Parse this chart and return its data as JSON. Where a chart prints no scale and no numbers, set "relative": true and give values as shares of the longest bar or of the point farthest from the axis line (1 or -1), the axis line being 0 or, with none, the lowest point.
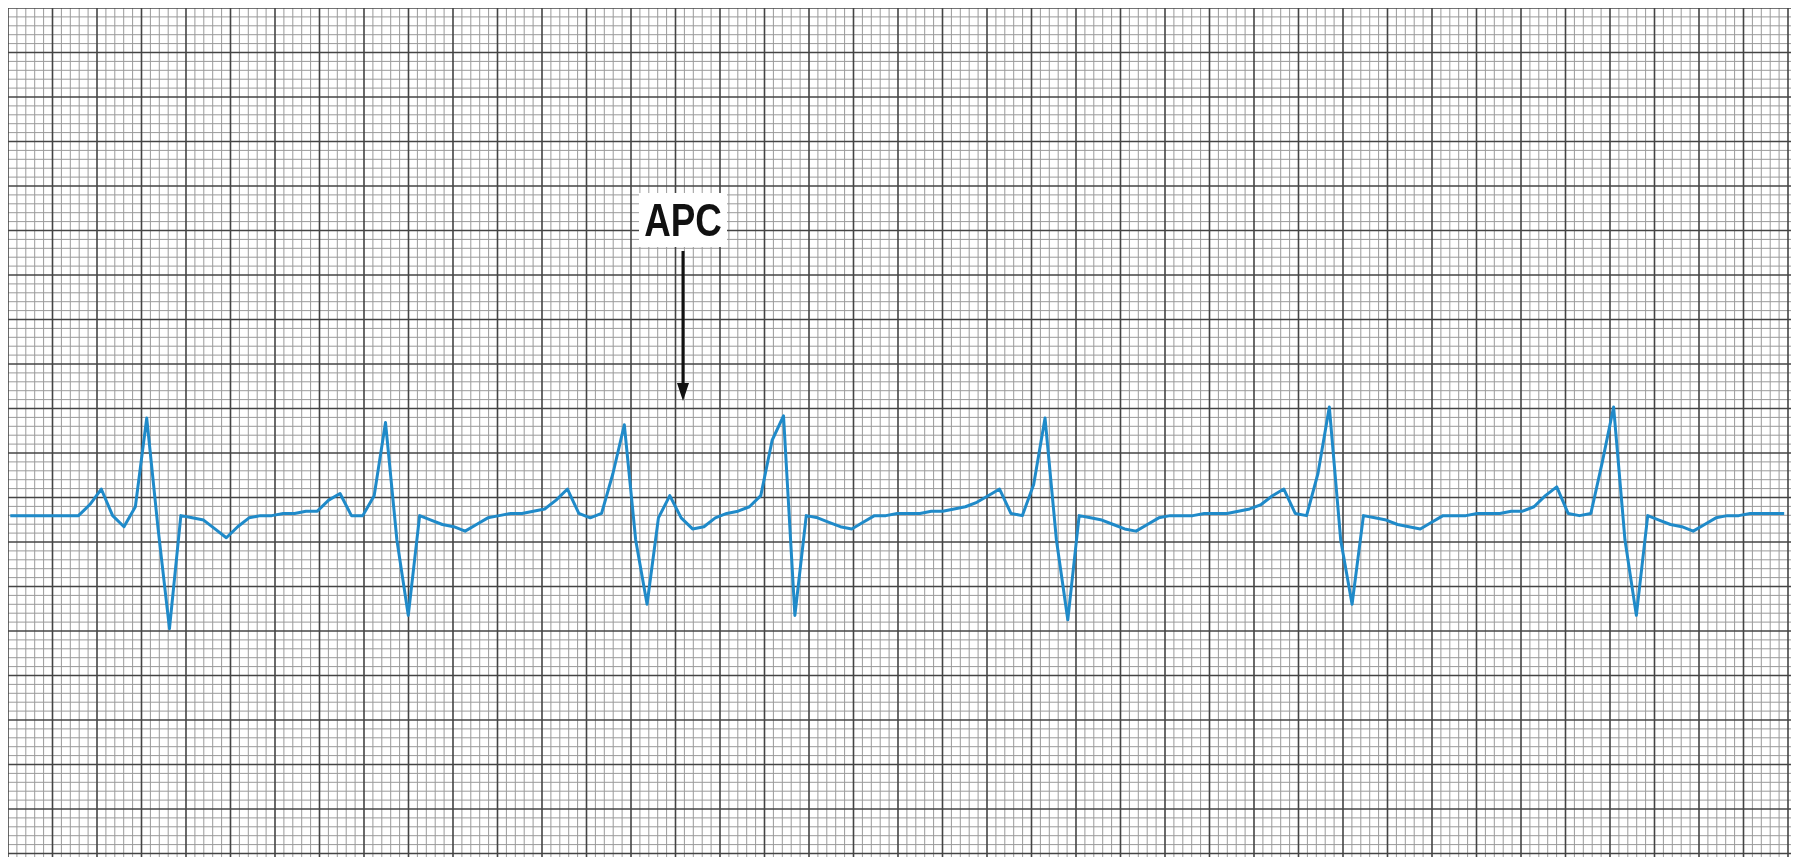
{
  "chart_data": {
    "type": "line",
    "relative": true,
    "grid": true,
    "annotations": [
      "APC"
    ],
    "categories": [
      null,
      null,
      null,
      null,
      null,
      null,
      null,
      null,
      null,
      null,
      null,
      null,
      null,
      null,
      null,
      null,
      null,
      null,
      null,
      null,
      null,
      null,
      null,
      null,
      null,
      null,
      null,
      null,
      null,
      null,
      null,
      null,
      null,
      null,
      null,
      null,
      null,
      null,
      null,
      null,
      null,
      null,
      null,
      null,
      null,
      null,
      null,
      null,
      null,
      null,
      null,
      null,
      null,
      null,
      null,
      null,
      null,
      null,
      null,
      null,
      null,
      null,
      null,
      null,
      null,
      null,
      null,
      null,
      null,
      null,
      null,
      null,
      null,
      null,
      null,
      null,
      null,
      null,
      null,
      null,
      null,
      null,
      null,
      null,
      null,
      null,
      null,
      null,
      null,
      null,
      null,
      null,
      null,
      null,
      null,
      null,
      null,
      null,
      null,
      null,
      null,
      null,
      null,
      null,
      null,
      null,
      null,
      null,
      null,
      null,
      null,
      null,
      null,
      null,
      null,
      null,
      null,
      null,
      null,
      null,
      null,
      null,
      null,
      null,
      null,
      null,
      null,
      null,
      null,
      null,
      null,
      null,
      null,
      null,
      null,
      null,
      null,
      null,
      null,
      null,
      null,
      null,
      null,
      null,
      null,
      null,
      null,
      null,
      null,
      null,
      null,
      null,
      null,
      null,
      null,
      null,
      null
    ],
    "series": [
      {
        "color": "#1f8ac9",
        "values": [
          0.51,
          0.51,
          0.51,
          0.51,
          0.51,
          0.51,
          0.51,
          0.56,
          0.63,
          0.51,
          0.46,
          0.55,
          0.95,
          0.45,
          0,
          0.51,
          0.5,
          0.49,
          0.45,
          0.41,
          0.46,
          0.5,
          0.51,
          0.51,
          0.52,
          0.52,
          0.53,
          0.53,
          0.58,
          0.61,
          0.51,
          0.51,
          0.6,
          0.93,
          0.4,
          0.06,
          0.51,
          0.49,
          0.47,
          0.46,
          0.44,
          0.47,
          0.5,
          0.51,
          0.52,
          0.52,
          0.53,
          0.54,
          0.58,
          0.63,
          0.52,
          0.5,
          0.52,
          0.7,
          0.92,
          0.4,
          0.11,
          0.5,
          0.6,
          0.5,
          0.45,
          0.46,
          0.5,
          0.52,
          0.53,
          0.55,
          0.6,
          0.85,
          0.96,
          0.06,
          0.51,
          0.5,
          0.48,
          0.46,
          0.45,
          0.48,
          0.51,
          0.51,
          0.52,
          0.52,
          0.52,
          0.53,
          0.53,
          0.54,
          0.55,
          0.57,
          0.6,
          0.63,
          0.52,
          0.51,
          0.65,
          0.95,
          0.4,
          0.04,
          0.51,
          0.5,
          0.49,
          0.47,
          0.45,
          0.44,
          0.47,
          0.5,
          0.51,
          0.51,
          0.51,
          0.52,
          0.52,
          0.52,
          0.53,
          0.54,
          0.56,
          0.6,
          0.63,
          0.52,
          0.51,
          0.7,
          1,
          0.4,
          0.11,
          0.51,
          0.5,
          0.49,
          0.47,
          0.46,
          0.45,
          0.48,
          0.51,
          0.51,
          0.51,
          0.52,
          0.52,
          0.52,
          0.53,
          0.53,
          0.55,
          0.6,
          0.64,
          0.52,
          0.51,
          0.52,
          0.75,
          1,
          0.4,
          0.06,
          0.51,
          0.49,
          0.47,
          0.46,
          0.44,
          0.47,
          0.5,
          0.51,
          0.51,
          0.52,
          0.52,
          0.52,
          0.52
        ]
      }
    ]
  }
}
